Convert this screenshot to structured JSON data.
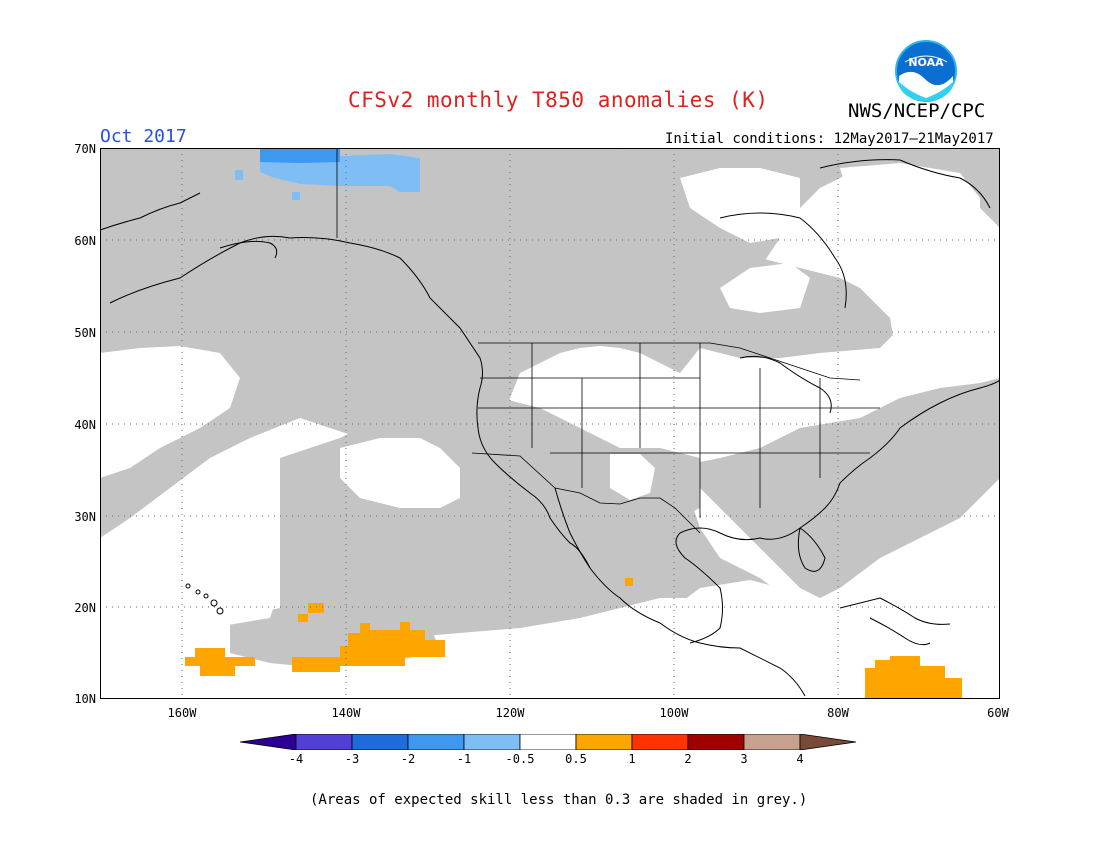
{
  "header": {
    "title": "CFSv2 monthly T850 anomalies (K)",
    "month": "Oct 2017",
    "initial_conditions": "Initial conditions: 12May2017–21May2017",
    "agency": "NWS/NCEP/CPC",
    "logo_text": "NOAA"
  },
  "map": {
    "region": "North America and NE Pacific",
    "lat_labels": [
      "70N",
      "60N",
      "50N",
      "40N",
      "30N",
      "20N",
      "10N"
    ],
    "lon_labels": [
      "160W",
      "140W",
      "120W",
      "100W",
      "80W",
      "60W"
    ],
    "colors": {
      "grey_low_skill": "#c4c4c4",
      "neutral": "#ffffff",
      "neg_0_5_1": "#7fbdf5",
      "neg_1_2": "#3f98f0",
      "pos_0_5_1": "#ffa500"
    }
  },
  "colorbar": {
    "labels": [
      "-4",
      "-3",
      "-2",
      "-1",
      "-0.5",
      "0.5",
      "1",
      "2",
      "3",
      "4"
    ],
    "colors": [
      "#2b0093",
      "#5040d8",
      "#1e6cdc",
      "#3f98f0",
      "#7fbdf5",
      "#ffffff",
      "#ffa500",
      "#ff3300",
      "#a00000",
      "#c8a090",
      "#7a4a38"
    ]
  },
  "footer": {
    "note": "(Areas of expected skill less than 0.3 are shaded in grey.)"
  }
}
